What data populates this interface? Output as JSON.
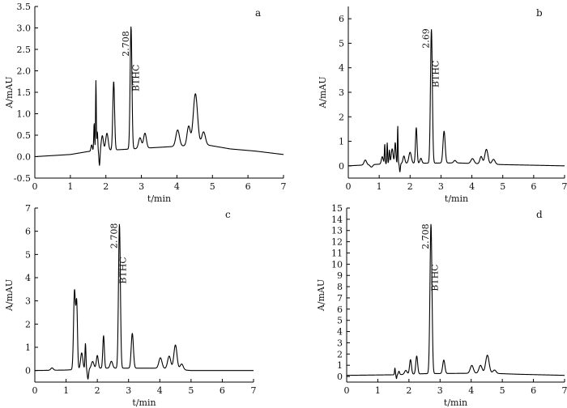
{
  "chart_data": [
    {
      "panel": "a",
      "type": "line",
      "xlabel": "t/min",
      "ylabel": "A/mAU",
      "xlim": [
        0,
        7
      ],
      "ylim": [
        -0.5,
        3.5
      ],
      "xticks": [
        "0",
        "1",
        "2",
        "3",
        "4",
        "5",
        "6",
        "7"
      ],
      "yticks": [
        "-0.5",
        "0.0",
        "0.5",
        "1.0",
        "1.5",
        "2.0",
        "2.5",
        "3.0",
        "3.5"
      ],
      "baseline": [
        [
          0,
          0.0
        ],
        [
          1.0,
          0.05
        ],
        [
          1.5,
          0.12
        ],
        [
          4.8,
          0.28
        ],
        [
          5.5,
          0.18
        ],
        [
          6.2,
          0.13
        ],
        [
          7,
          0.05
        ]
      ],
      "peaks": [
        {
          "t": 1.6,
          "h": 0.15,
          "w": 0.02
        },
        {
          "t": 1.67,
          "h": 0.65,
          "w": 0.012
        },
        {
          "t": 1.72,
          "h": 1.65,
          "w": 0.01
        },
        {
          "t": 1.76,
          "h": 0.45,
          "w": 0.012
        },
        {
          "t": 1.82,
          "h": -0.35,
          "w": 0.015
        },
        {
          "t": 1.9,
          "h": 0.35,
          "w": 0.03
        },
        {
          "t": 2.03,
          "h": 0.4,
          "w": 0.035
        },
        {
          "t": 2.22,
          "h": 1.6,
          "w": 0.025
        },
        {
          "t": 2.708,
          "h": 2.85,
          "w": 0.025
        },
        {
          "t": 2.96,
          "h": 0.25,
          "w": 0.04
        },
        {
          "t": 3.1,
          "h": 0.35,
          "w": 0.04
        },
        {
          "t": 4.02,
          "h": 0.38,
          "w": 0.05
        },
        {
          "t": 4.33,
          "h": 0.45,
          "w": 0.045
        },
        {
          "t": 4.52,
          "h": 1.2,
          "w": 0.06
        },
        {
          "t": 4.75,
          "h": 0.3,
          "w": 0.05
        }
      ],
      "annotations": [
        {
          "text": "2.708",
          "x": 2.708,
          "y": 2.93
        },
        {
          "text": "BTHC",
          "x": 3.0,
          "y": 2.15
        }
      ]
    },
    {
      "panel": "b",
      "type": "line",
      "xlabel": "t/min",
      "ylabel": "A/mAU",
      "xlim": [
        0,
        7
      ],
      "ylim": [
        -0.5,
        6.5
      ],
      "xticks": [
        "0",
        "1",
        "2",
        "3",
        "4",
        "5",
        "6",
        "7"
      ],
      "yticks": [
        "0",
        "1",
        "2",
        "3",
        "4",
        "5",
        "6"
      ],
      "baseline": [
        [
          0,
          0.0
        ],
        [
          1.5,
          0.1
        ],
        [
          3.5,
          0.12
        ],
        [
          5.0,
          0.05
        ],
        [
          7,
          0.0
        ]
      ],
      "peaks": [
        {
          "t": 0.55,
          "h": 0.2,
          "w": 0.04
        },
        {
          "t": 0.75,
          "h": -0.1,
          "w": 0.04
        },
        {
          "t": 1.1,
          "h": 0.3,
          "w": 0.03
        },
        {
          "t": 1.18,
          "h": 0.8,
          "w": 0.012
        },
        {
          "t": 1.26,
          "h": 0.85,
          "w": 0.012
        },
        {
          "t": 1.33,
          "h": 0.55,
          "w": 0.015
        },
        {
          "t": 1.42,
          "h": 0.6,
          "w": 0.03
        },
        {
          "t": 1.52,
          "h": 0.85,
          "w": 0.02
        },
        {
          "t": 1.6,
          "h": 1.55,
          "w": 0.01
        },
        {
          "t": 1.67,
          "h": -0.35,
          "w": 0.015
        },
        {
          "t": 1.8,
          "h": 0.3,
          "w": 0.03
        },
        {
          "t": 2.0,
          "h": 0.45,
          "w": 0.04
        },
        {
          "t": 2.2,
          "h": 1.45,
          "w": 0.025
        },
        {
          "t": 2.35,
          "h": 0.2,
          "w": 0.03
        },
        {
          "t": 2.69,
          "h": 5.45,
          "w": 0.03
        },
        {
          "t": 3.1,
          "h": 1.3,
          "w": 0.035
        },
        {
          "t": 3.45,
          "h": 0.1,
          "w": 0.04
        },
        {
          "t": 4.02,
          "h": 0.2,
          "w": 0.05
        },
        {
          "t": 4.3,
          "h": 0.3,
          "w": 0.04
        },
        {
          "t": 4.47,
          "h": 0.6,
          "w": 0.05
        },
        {
          "t": 4.7,
          "h": 0.2,
          "w": 0.05
        }
      ],
      "annotations": [
        {
          "text": "2.69",
          "x": 2.69,
          "y": 5.6
        },
        {
          "text": "BTHC",
          "x": 3.0,
          "y": 4.3
        }
      ]
    },
    {
      "panel": "c",
      "type": "line",
      "xlabel": "t/min",
      "ylabel": "A/mAU",
      "xlim": [
        0,
        7
      ],
      "ylim": [
        -0.5,
        7
      ],
      "xticks": [
        "0",
        "1",
        "2",
        "3",
        "4",
        "5",
        "6",
        "7"
      ],
      "yticks": [
        "0",
        "1",
        "2",
        "3",
        "4",
        "5",
        "6",
        "7"
      ],
      "baseline": [
        [
          0,
          0.0
        ],
        [
          1.0,
          0.02
        ],
        [
          2.0,
          0.1
        ],
        [
          4.0,
          0.1
        ],
        [
          5.0,
          0.0
        ],
        [
          7,
          0.0
        ]
      ],
      "peaks": [
        {
          "t": 0.55,
          "h": 0.1,
          "w": 0.04
        },
        {
          "t": 1.27,
          "h": 3.4,
          "w": 0.03
        },
        {
          "t": 1.34,
          "h": 2.8,
          "w": 0.025
        },
        {
          "t": 1.5,
          "h": 0.7,
          "w": 0.035
        },
        {
          "t": 1.62,
          "h": 1.1,
          "w": 0.015
        },
        {
          "t": 1.7,
          "h": -0.45,
          "w": 0.02
        },
        {
          "t": 1.85,
          "h": 0.3,
          "w": 0.04
        },
        {
          "t": 2.0,
          "h": 0.55,
          "w": 0.03
        },
        {
          "t": 2.2,
          "h": 1.4,
          "w": 0.025
        },
        {
          "t": 2.45,
          "h": 0.3,
          "w": 0.04
        },
        {
          "t": 2.708,
          "h": 6.2,
          "w": 0.03
        },
        {
          "t": 3.12,
          "h": 1.5,
          "w": 0.035
        },
        {
          "t": 4.02,
          "h": 0.45,
          "w": 0.05
        },
        {
          "t": 4.3,
          "h": 0.55,
          "w": 0.05
        },
        {
          "t": 4.5,
          "h": 1.05,
          "w": 0.05
        },
        {
          "t": 4.7,
          "h": 0.25,
          "w": 0.05
        }
      ],
      "annotations": [
        {
          "text": "2.708",
          "x": 2.708,
          "y": 6.35
        },
        {
          "text": "BTHC",
          "x": 3.0,
          "y": 4.9
        }
      ]
    },
    {
      "panel": "d",
      "type": "line",
      "xlabel": "t/min",
      "ylabel": "A/mAU",
      "xlim": [
        0,
        7
      ],
      "ylim": [
        -0.5,
        15
      ],
      "xticks": [
        "0",
        "1",
        "2",
        "3",
        "4",
        "5",
        "6",
        "7"
      ],
      "yticks": [
        "0",
        "1",
        "2",
        "3",
        "4",
        "5",
        "6",
        "7",
        "8",
        "9",
        "10",
        "11",
        "12",
        "13",
        "14",
        "15"
      ],
      "baseline": [
        [
          0,
          0.1
        ],
        [
          1.5,
          0.15
        ],
        [
          2.5,
          0.25
        ],
        [
          4.5,
          0.3
        ],
        [
          5.5,
          0.2
        ],
        [
          7,
          0.1
        ]
      ],
      "peaks": [
        {
          "t": 1.55,
          "h": 0.6,
          "w": 0.012
        },
        {
          "t": 1.6,
          "h": -0.35,
          "w": 0.012
        },
        {
          "t": 1.68,
          "h": 0.3,
          "w": 0.02
        },
        {
          "t": 1.9,
          "h": 0.35,
          "w": 0.04
        },
        {
          "t": 2.05,
          "h": 1.3,
          "w": 0.03
        },
        {
          "t": 2.25,
          "h": 1.6,
          "w": 0.03
        },
        {
          "t": 2.708,
          "h": 13.3,
          "w": 0.032
        },
        {
          "t": 3.12,
          "h": 1.2,
          "w": 0.035
        },
        {
          "t": 4.02,
          "h": 0.7,
          "w": 0.05
        },
        {
          "t": 4.3,
          "h": 0.7,
          "w": 0.05
        },
        {
          "t": 4.52,
          "h": 1.6,
          "w": 0.055
        },
        {
          "t": 4.75,
          "h": 0.3,
          "w": 0.05
        }
      ],
      "annotations": [
        {
          "text": "2.708",
          "x": 2.708,
          "y": 13.6
        },
        {
          "text": "BTHC",
          "x": 3.0,
          "y": 10.0
        }
      ]
    }
  ]
}
